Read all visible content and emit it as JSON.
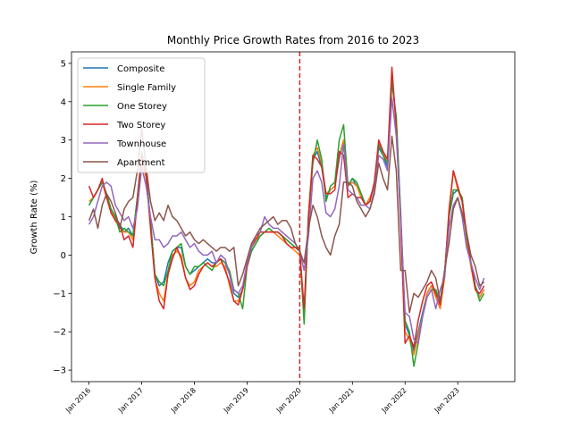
{
  "chart_data": {
    "type": "line",
    "title": "Monthly Price Growth Rates from 2016 to 2023",
    "xlabel": "",
    "ylabel": "Growth Rate (%)",
    "x_start": "2016-01",
    "x_ticks": [
      "Jan 2016",
      "Jan 2017",
      "Jan 2018",
      "Jan 2019",
      "Jan 2020",
      "Jan 2021",
      "Jan 2022",
      "Jan 2023"
    ],
    "xlim": [
      "2015-09",
      "2024-02"
    ],
    "ylim": [
      -3.3,
      5.3
    ],
    "y_ticks": [
      -3,
      -2,
      -1,
      0,
      1,
      2,
      3,
      4,
      5
    ],
    "grid": false,
    "legend": "top-left",
    "vline": {
      "x": "2020-01",
      "color": "#d62728",
      "style": "dashed"
    },
    "series": [
      {
        "name": "Composite",
        "color": "#1f77b4",
        "values": [
          1.3,
          1.5,
          1.7,
          1.9,
          1.5,
          1.2,
          1.0,
          0.8,
          0.6,
          0.7,
          0.5,
          1.5,
          2.6,
          2.1,
          0.9,
          -0.5,
          -0.8,
          -0.7,
          -0.2,
          0.1,
          0.2,
          0.2,
          -0.3,
          -0.5,
          -0.4,
          -0.3,
          -0.2,
          -0.1,
          -0.2,
          -0.2,
          -0.1,
          -0.2,
          -0.5,
          -1.0,
          -1.1,
          -0.9,
          -0.3,
          0.1,
          0.3,
          0.5,
          0.6,
          0.6,
          0.6,
          0.6,
          0.5,
          0.4,
          0.3,
          0.2,
          0.1,
          -1.5,
          1.0,
          2.5,
          2.7,
          2.3,
          1.5,
          1.7,
          1.8,
          2.5,
          3.0,
          1.8,
          2.0,
          1.8,
          1.6,
          1.3,
          1.5,
          1.8,
          2.8,
          2.6,
          2.3,
          4.6,
          3.5,
          1.0,
          -1.8,
          -2.1,
          -2.5,
          -2.0,
          -1.5,
          -1.0,
          -0.8,
          -1.0,
          -1.2,
          -0.5,
          1.0,
          1.6,
          1.7,
          1.5,
          0.5,
          -0.2,
          -0.8,
          -1.1,
          -0.9
        ]
      },
      {
        "name": "Single Family",
        "color": "#ff7f0e",
        "values": [
          1.4,
          1.5,
          1.7,
          1.9,
          1.5,
          1.2,
          0.9,
          0.7,
          0.6,
          0.6,
          0.4,
          1.4,
          2.5,
          2.0,
          0.8,
          -0.6,
          -1.0,
          -1.2,
          -0.5,
          0.0,
          0.1,
          0.0,
          -0.6,
          -0.8,
          -0.7,
          -0.4,
          -0.3,
          -0.2,
          -0.3,
          -0.3,
          -0.2,
          -0.3,
          -0.8,
          -1.2,
          -1.2,
          -0.9,
          -0.3,
          0.2,
          0.4,
          0.5,
          0.6,
          0.6,
          0.6,
          0.5,
          0.4,
          0.3,
          0.2,
          0.1,
          0.0,
          -1.6,
          1.1,
          2.6,
          2.8,
          2.4,
          1.6,
          1.7,
          1.8,
          2.6,
          3.0,
          1.8,
          1.9,
          1.8,
          1.5,
          1.3,
          1.5,
          1.8,
          2.9,
          2.7,
          2.4,
          4.7,
          3.4,
          0.9,
          -2.0,
          -2.2,
          -2.6,
          -2.1,
          -1.6,
          -1.0,
          -0.8,
          -1.1,
          -1.4,
          -0.6,
          1.2,
          2.2,
          1.7,
          1.4,
          0.4,
          -0.3,
          -0.9,
          -1.1,
          -0.9
        ]
      },
      {
        "name": "One Storey",
        "color": "#2ca02c",
        "values": [
          1.3,
          1.5,
          1.7,
          1.9,
          1.6,
          1.2,
          1.0,
          0.6,
          0.7,
          0.6,
          0.5,
          1.5,
          2.7,
          2.1,
          0.9,
          -0.5,
          -0.7,
          -0.8,
          -0.4,
          0.1,
          0.2,
          0.3,
          -0.3,
          -0.5,
          -0.3,
          -0.3,
          -0.2,
          -0.3,
          -0.4,
          -0.2,
          -0.1,
          -0.2,
          -0.4,
          -0.9,
          -1.0,
          -1.4,
          -0.3,
          0.1,
          0.3,
          0.5,
          0.6,
          0.7,
          0.6,
          0.6,
          0.5,
          0.4,
          0.3,
          0.2,
          0.2,
          -1.8,
          1.0,
          2.4,
          3.0,
          2.5,
          1.4,
          1.8,
          1.9,
          3.0,
          3.4,
          1.8,
          2.0,
          1.9,
          1.6,
          1.3,
          1.4,
          1.9,
          2.9,
          2.6,
          2.4,
          4.5,
          3.6,
          1.1,
          -1.7,
          -2.0,
          -2.9,
          -2.3,
          -1.6,
          -1.1,
          -0.9,
          -0.9,
          -1.2,
          -0.5,
          1.0,
          1.7,
          1.7,
          1.5,
          0.5,
          -0.2,
          -0.8,
          -1.2,
          -1.0
        ]
      },
      {
        "name": "Two Storey",
        "color": "#d62728",
        "values": [
          1.8,
          1.5,
          1.7,
          2.0,
          1.5,
          1.1,
          0.9,
          0.8,
          0.4,
          0.5,
          0.2,
          1.4,
          2.6,
          2.1,
          0.7,
          -0.6,
          -1.2,
          -1.4,
          -0.5,
          -0.1,
          0.2,
          -0.1,
          -0.6,
          -0.9,
          -0.8,
          -0.5,
          -0.3,
          -0.2,
          -0.3,
          -0.2,
          -0.1,
          -0.4,
          -0.7,
          -1.2,
          -1.3,
          -0.9,
          -0.3,
          0.2,
          0.4,
          0.6,
          0.6,
          0.6,
          0.6,
          0.6,
          0.5,
          0.3,
          0.2,
          0.2,
          0.1,
          -1.4,
          1.0,
          2.6,
          2.5,
          2.3,
          1.6,
          1.6,
          1.7,
          2.7,
          2.6,
          1.5,
          1.6,
          1.5,
          1.5,
          1.3,
          1.4,
          1.9,
          3.0,
          2.7,
          2.5,
          4.9,
          3.3,
          0.8,
          -2.3,
          -2.1,
          -2.4,
          -1.7,
          -1.2,
          -0.8,
          -0.7,
          -1.0,
          -1.3,
          -0.5,
          1.1,
          2.2,
          1.8,
          1.4,
          0.6,
          -0.2,
          -0.9,
          -1.0,
          -0.8
        ]
      },
      {
        "name": "Townhouse",
        "color": "#9467bd",
        "values": [
          0.8,
          1.0,
          1.4,
          1.8,
          1.9,
          1.8,
          1.3,
          1.1,
          0.9,
          1.0,
          0.7,
          1.2,
          2.3,
          1.8,
          1.0,
          0.4,
          0.4,
          0.2,
          0.3,
          0.5,
          0.5,
          0.6,
          0.4,
          0.2,
          0.3,
          0.1,
          0.0,
          0.0,
          0.1,
          -0.2,
          0.0,
          -0.1,
          -0.5,
          -0.9,
          -1.0,
          -0.8,
          -0.2,
          0.2,
          0.5,
          0.6,
          1.0,
          0.8,
          0.7,
          0.7,
          0.6,
          0.5,
          0.4,
          0.3,
          0.1,
          -0.4,
          0.5,
          2.0,
          2.2,
          1.9,
          1.1,
          1.0,
          1.2,
          1.8,
          2.9,
          1.7,
          1.6,
          1.5,
          1.3,
          1.3,
          1.2,
          1.7,
          2.6,
          2.5,
          2.2,
          4.1,
          3.1,
          1.0,
          -1.5,
          -1.6,
          -2.2,
          -2.3,
          -1.6,
          -1.1,
          -0.9,
          -1.4,
          -0.9,
          -0.6,
          0.7,
          1.3,
          1.5,
          1.0,
          0.2,
          -0.2,
          -0.6,
          -0.9,
          -0.6
        ]
      },
      {
        "name": "Apartment",
        "color": "#8c564b",
        "values": [
          0.9,
          1.2,
          0.7,
          1.3,
          1.6,
          1.4,
          1.1,
          0.7,
          1.2,
          1.4,
          1.5,
          2.2,
          3.3,
          2.3,
          1.4,
          0.9,
          1.1,
          0.9,
          1.3,
          1.0,
          0.9,
          0.7,
          0.5,
          0.6,
          0.4,
          0.3,
          0.4,
          0.3,
          0.2,
          0.1,
          0.2,
          0.2,
          0.1,
          0.2,
          -0.8,
          -0.5,
          -0.1,
          0.3,
          0.5,
          0.7,
          0.8,
          0.9,
          1.0,
          0.8,
          0.9,
          0.9,
          0.7,
          0.3,
          0.1,
          -0.2,
          0.7,
          1.3,
          1.0,
          0.5,
          0.2,
          0.0,
          0.5,
          0.8,
          1.9,
          1.9,
          1.8,
          1.4,
          1.2,
          1.0,
          1.2,
          1.6,
          2.4,
          2.0,
          1.7,
          3.1,
          2.2,
          -0.4,
          -0.4,
          -1.5,
          -1.0,
          -1.1,
          -0.9,
          -0.7,
          -0.4,
          -0.6,
          -1.2,
          -0.4,
          0.3,
          1.2,
          1.5,
          1.1,
          0.6,
          0.0,
          -0.3,
          -0.8,
          -0.7
        ]
      }
    ]
  }
}
